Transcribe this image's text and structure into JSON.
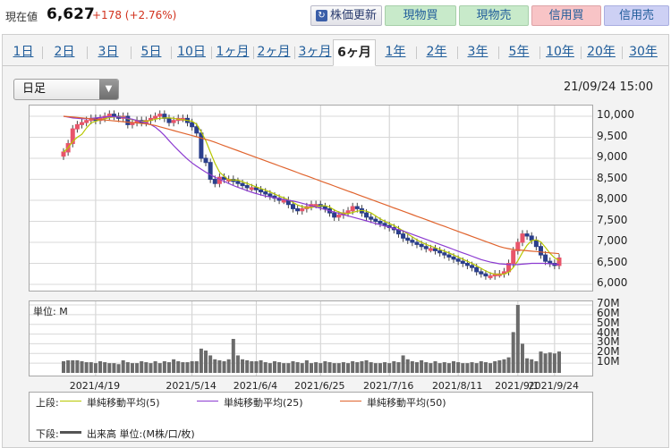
{
  "header": {
    "price_label": "現在値",
    "price": "6,627",
    "change": "+178 (+2.76%)"
  },
  "buttons": {
    "update": "株価更新",
    "cash_buy": "現物買",
    "cash_sell": "現物売",
    "margin_buy": "信用買",
    "margin_sell": "信用売"
  },
  "tabs": [
    "1日",
    "2日",
    "3日",
    "5日",
    "10日",
    "1ヶ月",
    "2ヶ月",
    "3ヶ月",
    "6ヶ月",
    "1年",
    "2年",
    "3年",
    "5年",
    "10年",
    "20年",
    "30年"
  ],
  "active_tab": "6ヶ月",
  "select": {
    "value": "日足"
  },
  "timestamp": "21/09/24 15:00",
  "chart_data": [
    {
      "type": "candlestick",
      "title": "",
      "ylim": [
        6000,
        10250
      ],
      "y_ticks": [
        "10,000",
        "9,500",
        "9,000",
        "8,500",
        "8,000",
        "7,500",
        "7,000",
        "6,500",
        "6,000"
      ],
      "x_ticks": [
        "2021/4/19",
        "2021/5/14",
        "2021/6/4",
        "2021/6/25",
        "2021/7/16",
        "2021/8/11",
        "2021/9/1",
        "2021/9/24"
      ],
      "colors": {
        "up": "#e8546a",
        "down": "#2b3f8c"
      },
      "close": [
        9150,
        9350,
        9700,
        9800,
        9850,
        9900,
        9950,
        9900,
        9950,
        10000,
        10050,
        10000,
        9950,
        10000,
        9800,
        9850,
        9900,
        9850,
        9900,
        9950,
        10000,
        10050,
        9950,
        9850,
        9900,
        9950,
        9950,
        9850,
        9750,
        9600,
        9000,
        8900,
        8500,
        8400,
        8550,
        8500,
        8500,
        8450,
        8400,
        8350,
        8300,
        8300,
        8250,
        8200,
        8150,
        8100,
        8050,
        8000,
        8000,
        7900,
        7800,
        7750,
        7800,
        7850,
        7900,
        7900,
        7850,
        7800,
        7700,
        7600,
        7650,
        7700,
        7750,
        7850,
        7800,
        7700,
        7600,
        7550,
        7500,
        7450,
        7400,
        7350,
        7300,
        7200,
        7100,
        7050,
        7000,
        6950,
        6900,
        6850,
        6850,
        6800,
        6750,
        6700,
        6650,
        6600,
        6550,
        6500,
        6450,
        6400,
        6300,
        6250,
        6200,
        6200,
        6250,
        6250,
        6300,
        6500,
        6800,
        7000,
        7200,
        7150,
        7050,
        6900,
        6700,
        6550,
        6500,
        6449,
        6627
      ],
      "series": [
        {
          "name": "単純移動平均(5)",
          "color": "#b7c700",
          "values": [
            9150,
            9250,
            9400,
            9500,
            9570,
            9720,
            9840,
            9880,
            9910,
            9940,
            9970,
            9980,
            9990,
            9980,
            9940,
            9920,
            9900,
            9880,
            9880,
            9900,
            9930,
            9950,
            9960,
            9960,
            9950,
            9930,
            9920,
            9900,
            9880,
            9810,
            9630,
            9420,
            9150,
            8880,
            8670,
            8570,
            8490,
            8480,
            8480,
            8440,
            8400,
            8360,
            8320,
            8280,
            8240,
            8200,
            8150,
            8100,
            8060,
            8010,
            7950,
            7890,
            7850,
            7820,
            7830,
            7850,
            7870,
            7870,
            7840,
            7770,
            7720,
            7690,
            7680,
            7710,
            7740,
            7760,
            7740,
            7700,
            7630,
            7560,
            7500,
            7450,
            7400,
            7340,
            7270,
            7200,
            7130,
            7060,
            7000,
            6950,
            6910,
            6870,
            6830,
            6790,
            6750,
            6700,
            6650,
            6600,
            6550,
            6500,
            6440,
            6380,
            6320,
            6270,
            6240,
            6240,
            6240,
            6290,
            6400,
            6560,
            6760,
            6930,
            7040,
            7060,
            7010,
            6880,
            6740,
            6630,
            6570
          ]
        },
        {
          "name": "単純移動平均(25)",
          "color": "#8c3bd1",
          "values": [
            10000,
            9980,
            9960,
            9950,
            9940,
            9940,
            9950,
            9960,
            9970,
            9980,
            9990,
            9990,
            9980,
            9970,
            9950,
            9930,
            9900,
            9870,
            9840,
            9800,
            9740,
            9650,
            9540,
            9420,
            9300,
            9190,
            9080,
            8980,
            8890,
            8810,
            8740,
            8670,
            8610,
            8550,
            8500,
            8450,
            8400,
            8350,
            8310,
            8270,
            8230,
            8190,
            8160,
            8130,
            8100,
            8080,
            8060,
            8040,
            8020,
            8000,
            7980,
            7960,
            7930,
            7900,
            7870,
            7840,
            7810,
            7780,
            7750,
            7720,
            7690,
            7660,
            7630,
            7600,
            7570,
            7540,
            7510,
            7480,
            7450,
            7420,
            7390,
            7360,
            7330,
            7300,
            7270,
            7230,
            7190,
            7150,
            7110,
            7070,
            7030,
            6990,
            6950,
            6910,
            6870,
            6830,
            6790,
            6750,
            6710,
            6670,
            6630,
            6590,
            6560,
            6530,
            6510,
            6490,
            6480,
            6470,
            6470,
            6470,
            6480,
            6490,
            6500,
            6500,
            6500,
            6500,
            6490,
            6480,
            6470
          ]
        },
        {
          "name": "単純移動平均(50)",
          "color": "#e0642e",
          "values": [
            10000,
            9990,
            9980,
            9970,
            9960,
            9950,
            9940,
            9930,
            9920,
            9910,
            9900,
            9890,
            9880,
            9870,
            9860,
            9850,
            9840,
            9830,
            9820,
            9800,
            9780,
            9750,
            9720,
            9690,
            9660,
            9630,
            9600,
            9570,
            9540,
            9510,
            9480,
            9450,
            9420,
            9380,
            9340,
            9300,
            9260,
            9220,
            9180,
            9140,
            9100,
            9060,
            9020,
            8980,
            8940,
            8900,
            8860,
            8820,
            8780,
            8740,
            8700,
            8660,
            8620,
            8580,
            8540,
            8500,
            8460,
            8420,
            8380,
            8340,
            8300,
            8260,
            8220,
            8180,
            8140,
            8100,
            8060,
            8020,
            7980,
            7940,
            7900,
            7860,
            7820,
            7780,
            7740,
            7700,
            7660,
            7620,
            7580,
            7540,
            7500,
            7460,
            7420,
            7380,
            7340,
            7300,
            7260,
            7220,
            7180,
            7140,
            7100,
            7060,
            7020,
            6980,
            6940,
            6900,
            6870,
            6850,
            6830,
            6820,
            6810,
            6800,
            6790,
            6780,
            6770,
            6760,
            6750,
            6740,
            6730
          ]
        }
      ]
    },
    {
      "type": "bar",
      "title": "",
      "ylabel": "単位: M",
      "ylim": [
        0,
        70
      ],
      "y_ticks": [
        "70M",
        "60M",
        "50M",
        "40M",
        "30M",
        "20M",
        "10M"
      ],
      "series": [
        {
          "name": "出来高 単位:(M株/口/枚)",
          "color": "#6b6b6b",
          "values": [
            12,
            13,
            13,
            13,
            12,
            11,
            11,
            10,
            12,
            11,
            10,
            10,
            9,
            13,
            11,
            10,
            10,
            12,
            11,
            10,
            12,
            10,
            12,
            11,
            14,
            12,
            11,
            11,
            12,
            12,
            25,
            23,
            18,
            14,
            13,
            12,
            14,
            35,
            18,
            14,
            13,
            12,
            12,
            13,
            11,
            10,
            12,
            11,
            10,
            10,
            12,
            11,
            10,
            13,
            10,
            11,
            10,
            12,
            11,
            10,
            10,
            11,
            10,
            12,
            11,
            12,
            13,
            11,
            10,
            10,
            11,
            10,
            12,
            11,
            18,
            14,
            12,
            11,
            13,
            11,
            10,
            12,
            10,
            11,
            10,
            12,
            11,
            10,
            10,
            11,
            10,
            12,
            11,
            10,
            12,
            13,
            14,
            16,
            42,
            70,
            30,
            15,
            14,
            12,
            22,
            20,
            21,
            20,
            22
          ]
        }
      ]
    }
  ],
  "legend": {
    "upper_label": "上段:",
    "lower_label": "下段:"
  }
}
